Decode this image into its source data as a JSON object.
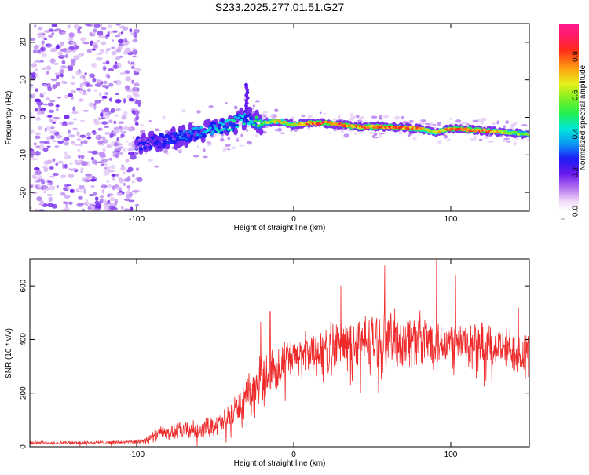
{
  "figure": {
    "title": "S233.2025.277.01.51.G27"
  },
  "colors": {
    "snr_line": "#ee2a2a",
    "axis": "#000000",
    "background": "#ffffff"
  },
  "chart_data": [
    {
      "type": "heatmap",
      "name": "spectrogram",
      "xlabel": "Height of straight line (km)",
      "ylabel": "Frequency (Hz)",
      "xlim": [
        -168,
        150
      ],
      "ylim": [
        -25,
        25
      ],
      "xticks": [
        -100,
        0,
        100
      ],
      "xtick_labels": [
        "-100",
        "0",
        "100"
      ],
      "yticks": [
        -20,
        -10,
        0,
        10,
        20
      ],
      "ytick_labels": [
        "-20",
        "-10",
        "0",
        "10",
        "20"
      ],
      "ridge": {
        "description": "dominant frequency ridge vs height",
        "x": [
          -100,
          -90,
          -80,
          -70,
          -60,
          -50,
          -40,
          -30,
          -20,
          -10,
          0,
          10,
          20,
          40,
          60,
          80,
          90,
          100,
          120,
          150
        ],
        "freq": [
          -7,
          -6.5,
          -6,
          -5,
          -4,
          -3,
          -2,
          0,
          -1.5,
          -1,
          -2,
          -1.5,
          -1.5,
          -2.5,
          -2.5,
          -3,
          -4,
          -3,
          -3.5,
          -4.5
        ],
        "amplitude": [
          0.15,
          0.2,
          0.3,
          0.35,
          0.4,
          0.45,
          0.5,
          0.45,
          0.6,
          0.75,
          0.7,
          0.85,
          0.9,
          0.85,
          0.85,
          0.8,
          0.7,
          0.85,
          0.85,
          0.6
        ]
      },
      "noise_region": {
        "x_from": -168,
        "x_to": -98,
        "amplitude": 0.05
      },
      "colorbar": {
        "label": "Normalized spectral amplitude",
        "range": [
          0,
          0.97
        ],
        "ticks": [
          0.0,
          0.2,
          0.4,
          0.6,
          0.8
        ],
        "tick_labels": [
          "0.0",
          "0.2",
          "0.4",
          "0.6",
          "0.8"
        ]
      }
    },
    {
      "type": "line",
      "name": "snr",
      "xlabel": "Height of straight line (km)",
      "ylabel": "SNR (10 * v/v)",
      "xlim": [
        -168,
        150
      ],
      "ylim": [
        0,
        700
      ],
      "xticks": [
        -100,
        0,
        100
      ],
      "xtick_labels": [
        "-100",
        "0",
        "100"
      ],
      "yticks": [
        0,
        200,
        400,
        600
      ],
      "ytick_labels": [
        "0",
        "200",
        "400",
        "600"
      ],
      "envelope": {
        "x": [
          -168,
          -130,
          -100,
          -95,
          -85,
          -70,
          -60,
          -45,
          -30,
          -20,
          -10,
          0,
          10,
          20,
          30,
          50,
          70,
          80,
          100,
          110,
          120,
          130,
          140,
          150
        ],
        "base": [
          15,
          15,
          18,
          25,
          50,
          60,
          65,
          90,
          180,
          260,
          300,
          330,
          350,
          360,
          380,
          390,
          400,
          400,
          390,
          385,
          380,
          370,
          360,
          350
        ],
        "spread": [
          8,
          8,
          10,
          15,
          30,
          40,
          40,
          50,
          80,
          120,
          100,
          90,
          100,
          110,
          120,
          130,
          130,
          120,
          110,
          110,
          100,
          100,
          100,
          110
        ]
      },
      "peaks": [
        {
          "x": -44,
          "y": 140
        },
        {
          "x": -21,
          "y": 465
        },
        {
          "x": -15,
          "y": 505
        },
        {
          "x": -6,
          "y": 320
        },
        {
          "x": 4,
          "y": 390
        },
        {
          "x": 30,
          "y": 600
        },
        {
          "x": 58,
          "y": 675
        },
        {
          "x": 91,
          "y": 700
        },
        {
          "x": 103,
          "y": 640
        },
        {
          "x": 143,
          "y": 520
        }
      ]
    }
  ]
}
